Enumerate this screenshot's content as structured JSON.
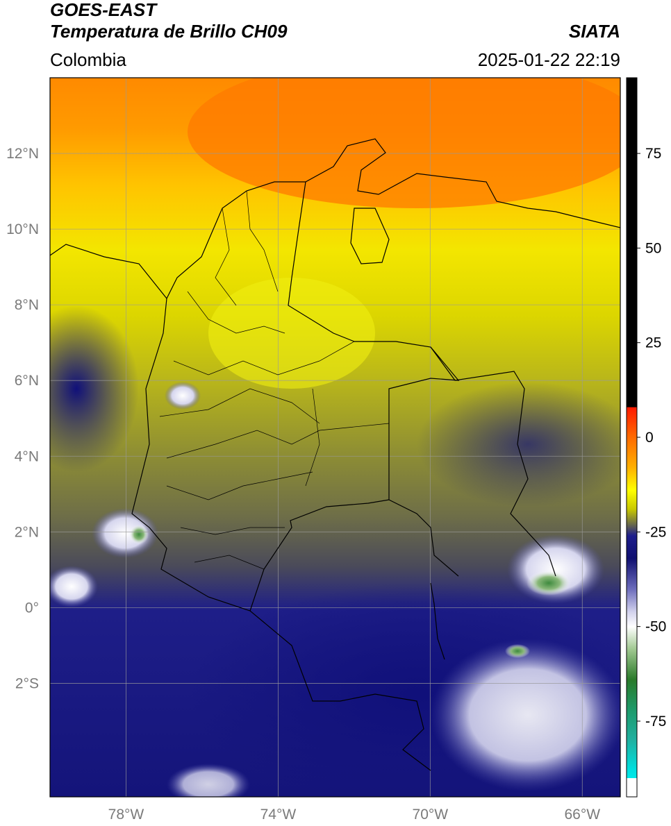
{
  "header": {
    "satellite": "GOES-EAST",
    "product": "Temperatura de Brillo CH09",
    "agency": "SIATA",
    "region": "Colombia",
    "datetime": "2025-01-22 22:19"
  },
  "map": {
    "lon_range": [
      -80,
      -65
    ],
    "lat_range": [
      -5,
      14
    ],
    "lat_ticks": [
      {
        "value": 12,
        "label": "12°N"
      },
      {
        "value": 10,
        "label": "10°N"
      },
      {
        "value": 8,
        "label": "8°N"
      },
      {
        "value": 6,
        "label": "6°N"
      },
      {
        "value": 4,
        "label": "4°N"
      },
      {
        "value": 2,
        "label": "2°N"
      },
      {
        "value": 0,
        "label": "0°"
      },
      {
        "value": -2,
        "label": "2°S"
      }
    ],
    "lon_ticks": [
      {
        "value": -78,
        "label": "78°W"
      },
      {
        "value": -74,
        "label": "74°W"
      },
      {
        "value": -70,
        "label": "70°W"
      },
      {
        "value": -66,
        "label": "66°W"
      }
    ],
    "gridlines": true
  },
  "colorbar": {
    "range": [
      -95,
      95
    ],
    "ticks": [
      {
        "value": 75,
        "label": "75"
      },
      {
        "value": 50,
        "label": "50"
      },
      {
        "value": 25,
        "label": "25"
      },
      {
        "value": 0,
        "label": "0"
      },
      {
        "value": -25,
        "label": "-25"
      },
      {
        "value": -50,
        "label": "-50"
      },
      {
        "value": -75,
        "label": "-75"
      }
    ],
    "stops": [
      {
        "value": 95,
        "color": "#000000"
      },
      {
        "value": 8,
        "color": "#000000"
      },
      {
        "value": 7.9,
        "color": "#ff1a00"
      },
      {
        "value": 0,
        "color": "#ff6a00"
      },
      {
        "value": -8,
        "color": "#ffb000"
      },
      {
        "value": -14,
        "color": "#ffff00"
      },
      {
        "value": -19,
        "color": "#c8c800"
      },
      {
        "value": -23,
        "color": "#6a6a4a"
      },
      {
        "value": -26,
        "color": "#1e1e8c"
      },
      {
        "value": -32,
        "color": "#101070"
      },
      {
        "value": -40,
        "color": "#6b6bbb"
      },
      {
        "value": -46,
        "color": "#d0d0ec"
      },
      {
        "value": -50,
        "color": "#ffffff"
      },
      {
        "value": -56,
        "color": "#a0c890"
      },
      {
        "value": -64,
        "color": "#2a7a2a"
      },
      {
        "value": -72,
        "color": "#1e9a6a"
      },
      {
        "value": -80,
        "color": "#20b0a0"
      },
      {
        "value": -88,
        "color": "#00e0e0"
      },
      {
        "value": -90,
        "color": "#00e8e8"
      },
      {
        "value": -90.1,
        "color": "#ffffff"
      },
      {
        "value": -95,
        "color": "#ffffff"
      }
    ]
  }
}
